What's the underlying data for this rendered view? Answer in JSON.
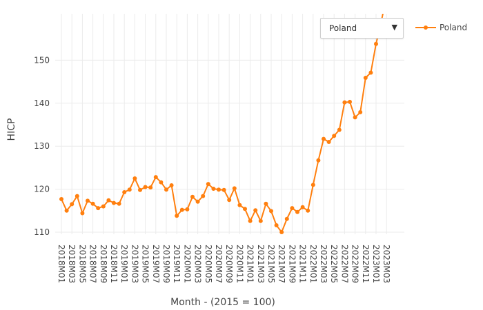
{
  "dropdown": {
    "selected": "Poland",
    "arrow_icon": "triangle-down-icon"
  },
  "chart_data": {
    "type": "line",
    "title": "",
    "xlabel": "Month - (2015 = 100)",
    "ylabel": "HICP",
    "ylim": [
      108,
      160
    ],
    "yticks": [
      110,
      120,
      130,
      140,
      150
    ],
    "grid": true,
    "legend": "top-right",
    "x_tick_labels": [
      "2018M01",
      "2018M03",
      "2018M05",
      "2018M07",
      "2018M09",
      "2018M11",
      "2019M01",
      "2019M03",
      "2019M05",
      "2019M07",
      "2019M09",
      "2019M11",
      "2020M01",
      "2020M03",
      "2020M05",
      "2020M07",
      "2020M09",
      "2020M11",
      "2021M01",
      "2021M03",
      "2021M05",
      "2021M07",
      "2021M09",
      "2021M11",
      "2022M01",
      "2022M03",
      "2022M05",
      "2022M07",
      "2022M09",
      "2022M11",
      "2023M01",
      "2023M03"
    ],
    "series": [
      {
        "name": "Poland",
        "color": "#ff7f0e",
        "x": [
          "2018M01",
          "2018M02",
          "2018M03",
          "2018M04",
          "2018M05",
          "2018M06",
          "2018M07",
          "2018M08",
          "2018M09",
          "2018M10",
          "2018M11",
          "2018M12",
          "2019M01",
          "2019M02",
          "2019M03",
          "2019M04",
          "2019M05",
          "2019M06",
          "2019M07",
          "2019M08",
          "2019M09",
          "2019M10",
          "2019M11",
          "2019M12",
          "2020M01",
          "2020M02",
          "2020M03",
          "2020M04",
          "2020M05",
          "2020M06",
          "2020M07",
          "2020M08",
          "2020M09",
          "2020M10",
          "2020M11",
          "2020M12",
          "2021M01",
          "2021M02",
          "2021M03",
          "2021M04",
          "2021M05",
          "2021M06",
          "2021M07",
          "2021M08",
          "2021M09",
          "2021M10",
          "2021M11",
          "2021M12",
          "2022M01",
          "2022M02",
          "2022M03",
          "2022M04",
          "2022M05",
          "2022M06",
          "2022M07",
          "2022M08",
          "2022M09",
          "2022M10",
          "2022M11",
          "2022M12",
          "2023M01",
          "2023M02",
          "2023M03"
        ],
        "values": [
          117.7,
          115.0,
          116.5,
          118.4,
          114.4,
          117.3,
          116.6,
          115.6,
          116.0,
          117.4,
          116.8,
          116.6,
          119.3,
          119.9,
          122.5,
          119.8,
          120.5,
          120.4,
          122.8,
          121.6,
          119.9,
          120.9,
          113.8,
          115.2,
          115.3,
          118.2,
          117.1,
          118.4,
          121.2,
          120.1,
          119.9,
          119.8,
          117.5,
          120.2,
          116.3,
          115.4,
          112.6,
          115.1,
          112.6,
          116.6,
          114.9,
          111.6,
          110.0,
          113.1,
          115.6,
          114.7,
          115.8,
          115.0,
          121.0,
          126.7,
          131.7,
          131.0,
          132.4,
          133.8,
          140.2,
          140.3,
          136.7,
          137.9,
          145.9,
          147.1,
          153.8,
          159.0,
          165.0
        ]
      }
    ]
  }
}
